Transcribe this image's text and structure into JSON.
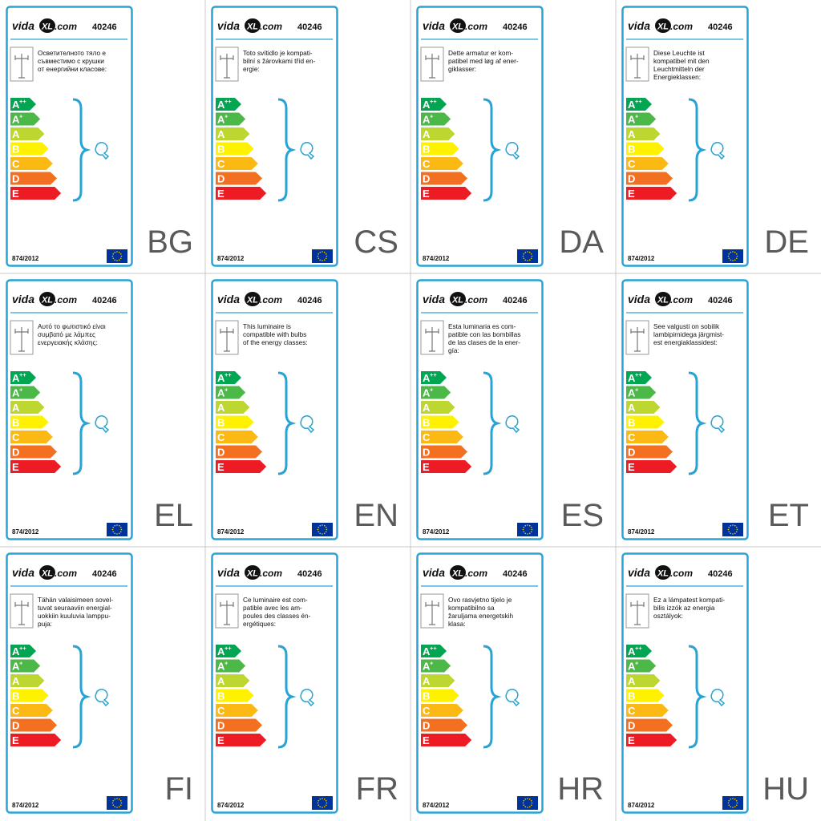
{
  "product_number": "40246",
  "regulation": "874/2012",
  "brand": {
    "prefix": "vida",
    "badge": "XL",
    "suffix": ".com"
  },
  "energy_classes": [
    {
      "letter": "A",
      "sup": "++",
      "color": "#00a651"
    },
    {
      "letter": "A",
      "sup": "+",
      "color": "#4cb847"
    },
    {
      "letter": "A",
      "color": "#bed630"
    },
    {
      "letter": "B",
      "color": "#fff200"
    },
    {
      "letter": "C",
      "color": "#fdb913"
    },
    {
      "letter": "D",
      "color": "#f37021"
    },
    {
      "letter": "E",
      "color": "#ed1c24"
    }
  ],
  "labels": [
    {
      "lang": "BG",
      "text": [
        "Осветителното тяло е",
        "съвместимо с крушки",
        "от енергийни класове:"
      ]
    },
    {
      "lang": "CS",
      "text": [
        "Toto svítidlo je kompati-",
        "bilní s žárovkami tříd en-",
        "ergie:"
      ]
    },
    {
      "lang": "DA",
      "text": [
        "Dette armatur er kom-",
        "patibel med løg af ener-",
        "giklasser:"
      ]
    },
    {
      "lang": "DE",
      "text": [
        "Diese Leuchte ist",
        "kompatibel mit den",
        "Leuchtmitteln der",
        "Energieklassen:"
      ]
    },
    {
      "lang": "EL",
      "text": [
        "Αυτό το φωτιστικό είναι",
        "συμβατό με λάμπες",
        "ενεργειακής κλάσης:"
      ]
    },
    {
      "lang": "EN",
      "text": [
        "This luminaire is",
        "compatible with bulbs",
        "of the energy classes:"
      ]
    },
    {
      "lang": "ES",
      "text": [
        "Esta luminaria es com-",
        "patible con las bombillas",
        "de las clases de la ener-",
        "gía:"
      ]
    },
    {
      "lang": "ET",
      "text": [
        "See valgusti on sobilik",
        "lambipirnidega järgmist-",
        "est energiaklassidest:"
      ]
    },
    {
      "lang": "FI",
      "text": [
        "Tähän valaisimeen sovel-",
        "tuvat seuraaviin energial-",
        "uokkiin kuuluvia lamppu-",
        "puja:"
      ]
    },
    {
      "lang": "FR",
      "text": [
        "Ce luminaire est com-",
        "patible avec les am-",
        "poules des classes én-",
        "ergétiques:"
      ]
    },
    {
      "lang": "HR",
      "text": [
        "Ovo rasvjetno tijelo je",
        "kompatibilno sa",
        "žaruljama energetskih",
        "klasa:"
      ]
    },
    {
      "lang": "HU",
      "text": [
        "Ez a lámpatest kompati-",
        "bilis izzók az energia",
        "osztályok:"
      ]
    }
  ]
}
